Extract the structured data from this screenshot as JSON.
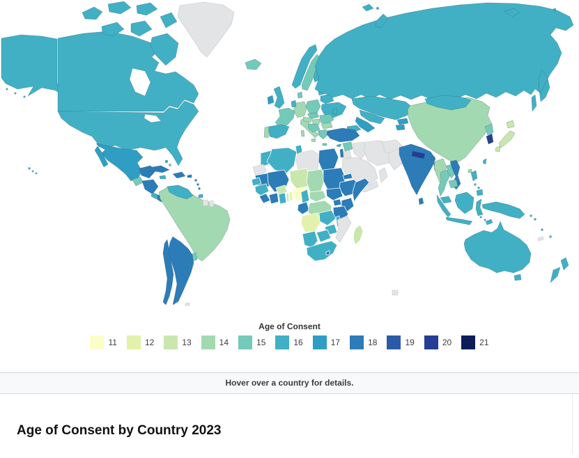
{
  "legend": {
    "title": "Age of Consent",
    "items": [
      {
        "label": "11",
        "color": "#fdfdc8"
      },
      {
        "label": "12",
        "color": "#e2f1ab"
      },
      {
        "label": "13",
        "color": "#c9e7ad"
      },
      {
        "label": "14",
        "color": "#a3d9b1"
      },
      {
        "label": "15",
        "color": "#74cab8"
      },
      {
        "label": "16",
        "color": "#41b0c4"
      },
      {
        "label": "17",
        "color": "#2f9ec2"
      },
      {
        "label": "18",
        "color": "#2c7cb8"
      },
      {
        "label": "19",
        "color": "#2b5ba7"
      },
      {
        "label": "20",
        "color": "#253d94"
      },
      {
        "label": "21",
        "color": "#0c1e58"
      }
    ]
  },
  "hover_bar": {
    "text": "Hover over a country for details."
  },
  "page_title": {
    "text": "Age of Consent by Country 2023"
  },
  "map": {
    "ocean_color": "#ffffff",
    "no_data_color": "#e3e4e5",
    "border_color": "#2d6b7e",
    "regions": {
      "alaska": "16",
      "aleutians": "16",
      "canada": "16",
      "arctic-island-1": "16",
      "arctic-island-2": "16",
      "arctic-island-3": "16",
      "arctic-island-4": "16",
      "arctic-island-5": "16",
      "arctic-island-6": "16",
      "baffin-island": "16",
      "greenland": "no_data",
      "usa": "16",
      "hawaii": "16",
      "mexico": "17",
      "baja-california": "17",
      "yucatan-belize": "18",
      "guatemala": "15",
      "honduras-nicaragua": "18",
      "costa-rica": "16",
      "panama": "18",
      "cuba": "18",
      "jamaica": "16",
      "hispaniola": "18",
      "puerto-rico": "18",
      "bahamas": "16",
      "lesser-antilles": "18",
      "trinidad-tobago": "16",
      "south-america": "14",
      "venezuela": "16",
      "suriname": "no_data",
      "french-guiana": "no_data",
      "uruguay": "15",
      "argentina": "18",
      "chile": "18",
      "falkland-islands": "no_data",
      "iceland": "15",
      "uk": "16",
      "ireland": "17",
      "norway": "16",
      "sweden": "15",
      "finland": "16",
      "denmark": "15",
      "baltics": "16",
      "belarus": "16",
      "ukraine": "16",
      "poland": "15",
      "germany": "14",
      "benelux": "16",
      "france": "15",
      "spain": "16",
      "portugal": "14",
      "italy": "14",
      "sicily": "14",
      "sardinia": "14",
      "czech-slovakia": "15",
      "austria": "14",
      "hungary": "14",
      "balkans": "15",
      "albania": "14",
      "romania": "15",
      "bulgaria": "14",
      "greece": "15",
      "crete": "15",
      "moldova": "16",
      "russia": "16",
      "sakhalin": "16",
      "new-siberian-islands": "16",
      "wrangel": "16",
      "novaya-zemlya": "16",
      "svalbard": "16",
      "svalbard-2": "16",
      "kazakhstan": "16",
      "uzbekistan": "16",
      "turkmenistan": "17",
      "kyrgyzstan": "17",
      "tajikistan": "17",
      "caucasus": "16",
      "turkey": "18",
      "cyprus": "16",
      "syria": "15",
      "israel": "18",
      "jordan": "no_data",
      "iraq": "no_data",
      "iran": "no_data",
      "saudi-arabia": "no_data",
      "yemen": "no_data",
      "oman": "no_data",
      "afghanistan": "no_data",
      "pakistan": "no_data",
      "morocco": "16",
      "western-sahara": "no_data",
      "algeria": "16",
      "tunisia": "16",
      "libya": "no_data",
      "egypt": "18",
      "mauritania": "18",
      "senegal": "16",
      "guinea": "16",
      "sierra-leone-liberia": "18",
      "mali": "18",
      "burkina-faso": "13",
      "cote-divoire": "18",
      "ghana": "16",
      "togo": "13",
      "benin": "12",
      "niger": "13",
      "nigeria": "11",
      "chad": "14",
      "cameroon": "16",
      "central-african-republic": "14",
      "sudan": "18",
      "eritrea": "18",
      "ethiopia": "18",
      "somalia": "18",
      "south-sudan": "18",
      "gabon-congo": "18",
      "drc": "14",
      "uganda": "18",
      "kenya": "18",
      "tanzania": "18",
      "angola": "12",
      "zambia": "16",
      "malawi": "16",
      "mozambique": "no_data",
      "zimbabwe": "16",
      "botswana": "16",
      "namibia": "16",
      "south-africa": "16",
      "lesotho": "18",
      "madagascar": "13",
      "india": "18",
      "nepal": "20",
      "bhutan": "18",
      "bangladesh": "18",
      "sri-lanka": "18",
      "china": "14",
      "mongolia": "16",
      "north-korea": "15",
      "south-korea": "20",
      "japan-hokkaido": "13",
      "japan-honshu": "13",
      "japan-kyushu": "13",
      "taiwan": "16",
      "hainan": "14",
      "myanmar": "14",
      "thailand": "15",
      "laos": "15",
      "vietnam": "18",
      "cambodia": "15",
      "malaysia": "16",
      "sumatra": "16",
      "java": "16",
      "borneo": "16",
      "sulawesi": "16",
      "moluccas": "16",
      "timor": "16",
      "new-guinea": "16",
      "philippines-luzon": "16",
      "philippines-visayas": "16",
      "philippines-mindanao": "16",
      "australia": "16",
      "tasmania": "16",
      "new-zealand-north": "16",
      "new-zealand-south": "16",
      "solomon-islands": "16",
      "vanuatu": "16",
      "fiji": "16",
      "new-caledonia": "no_data",
      "kerguelen-fragment": "no_data"
    }
  }
}
